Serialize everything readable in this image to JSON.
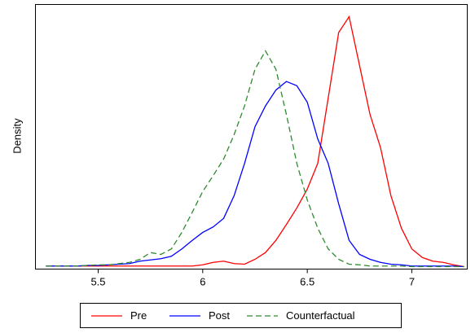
{
  "chart_data": {
    "type": "line",
    "y_label": "Density",
    "x": [
      5.25,
      5.3,
      5.35,
      5.4,
      5.45,
      5.5,
      5.55,
      5.6,
      5.65,
      5.7,
      5.75,
      5.8,
      5.85,
      5.9,
      5.95,
      6.0,
      6.05,
      6.1,
      6.15,
      6.2,
      6.25,
      6.3,
      6.35,
      6.4,
      6.45,
      6.5,
      6.55,
      6.6,
      6.65,
      6.7,
      6.75,
      6.8,
      6.85,
      6.9,
      6.95,
      7.0,
      7.05,
      7.1,
      7.15,
      7.2,
      7.25
    ],
    "series": [
      {
        "name": "Pre",
        "color": "#ff0000",
        "dash": "solid",
        "values": [
          0.01,
          0.01,
          0.01,
          0.01,
          0.01,
          0.01,
          0.01,
          0.01,
          0.01,
          0.01,
          0.01,
          0.01,
          0.01,
          0.01,
          0.01,
          0.03,
          0.07,
          0.09,
          0.05,
          0.04,
          0.12,
          0.23,
          0.43,
          0.69,
          0.96,
          1.27,
          1.69,
          2.76,
          3.83,
          4.09,
          3.29,
          2.49,
          1.95,
          1.16,
          0.63,
          0.29,
          0.15,
          0.09,
          0.07,
          0.03,
          0
        ]
      },
      {
        "name": "Post",
        "color": "#0000ff",
        "dash": "solid",
        "values": [
          0.01,
          0.01,
          0.01,
          0.01,
          0.02,
          0.02,
          0.03,
          0.04,
          0.05,
          0.09,
          0.11,
          0.13,
          0.17,
          0.29,
          0.43,
          0.56,
          0.65,
          0.79,
          1.16,
          1.69,
          2.29,
          2.63,
          2.89,
          3.03,
          2.96,
          2.69,
          2.09,
          1.69,
          1.03,
          0.43,
          0.2,
          0.12,
          0.07,
          0.04,
          0.03,
          0.01,
          0.01,
          0.01,
          0.01,
          0.01,
          0
        ]
      },
      {
        "name": "Counterfactual",
        "color": "#2e8b2e",
        "dash": "dashed",
        "values": [
          0.01,
          0.01,
          0.01,
          0.01,
          0.02,
          0.03,
          0.03,
          0.05,
          0.07,
          0.12,
          0.23,
          0.2,
          0.29,
          0.56,
          0.89,
          1.23,
          1.49,
          1.76,
          2.16,
          2.63,
          3.23,
          3.53,
          3.23,
          2.49,
          1.69,
          1.09,
          0.63,
          0.29,
          0.12,
          0.04,
          0.03,
          0.01,
          0.01,
          0.01,
          0.01,
          0,
          0,
          0,
          0,
          0,
          0
        ]
      }
    ],
    "xlim": [
      5.2,
      7.265
    ],
    "ylim": [
      -0.04,
      4.29
    ],
    "xticks": [
      5.5,
      6,
      6.5,
      7
    ],
    "legend": "bottom"
  }
}
